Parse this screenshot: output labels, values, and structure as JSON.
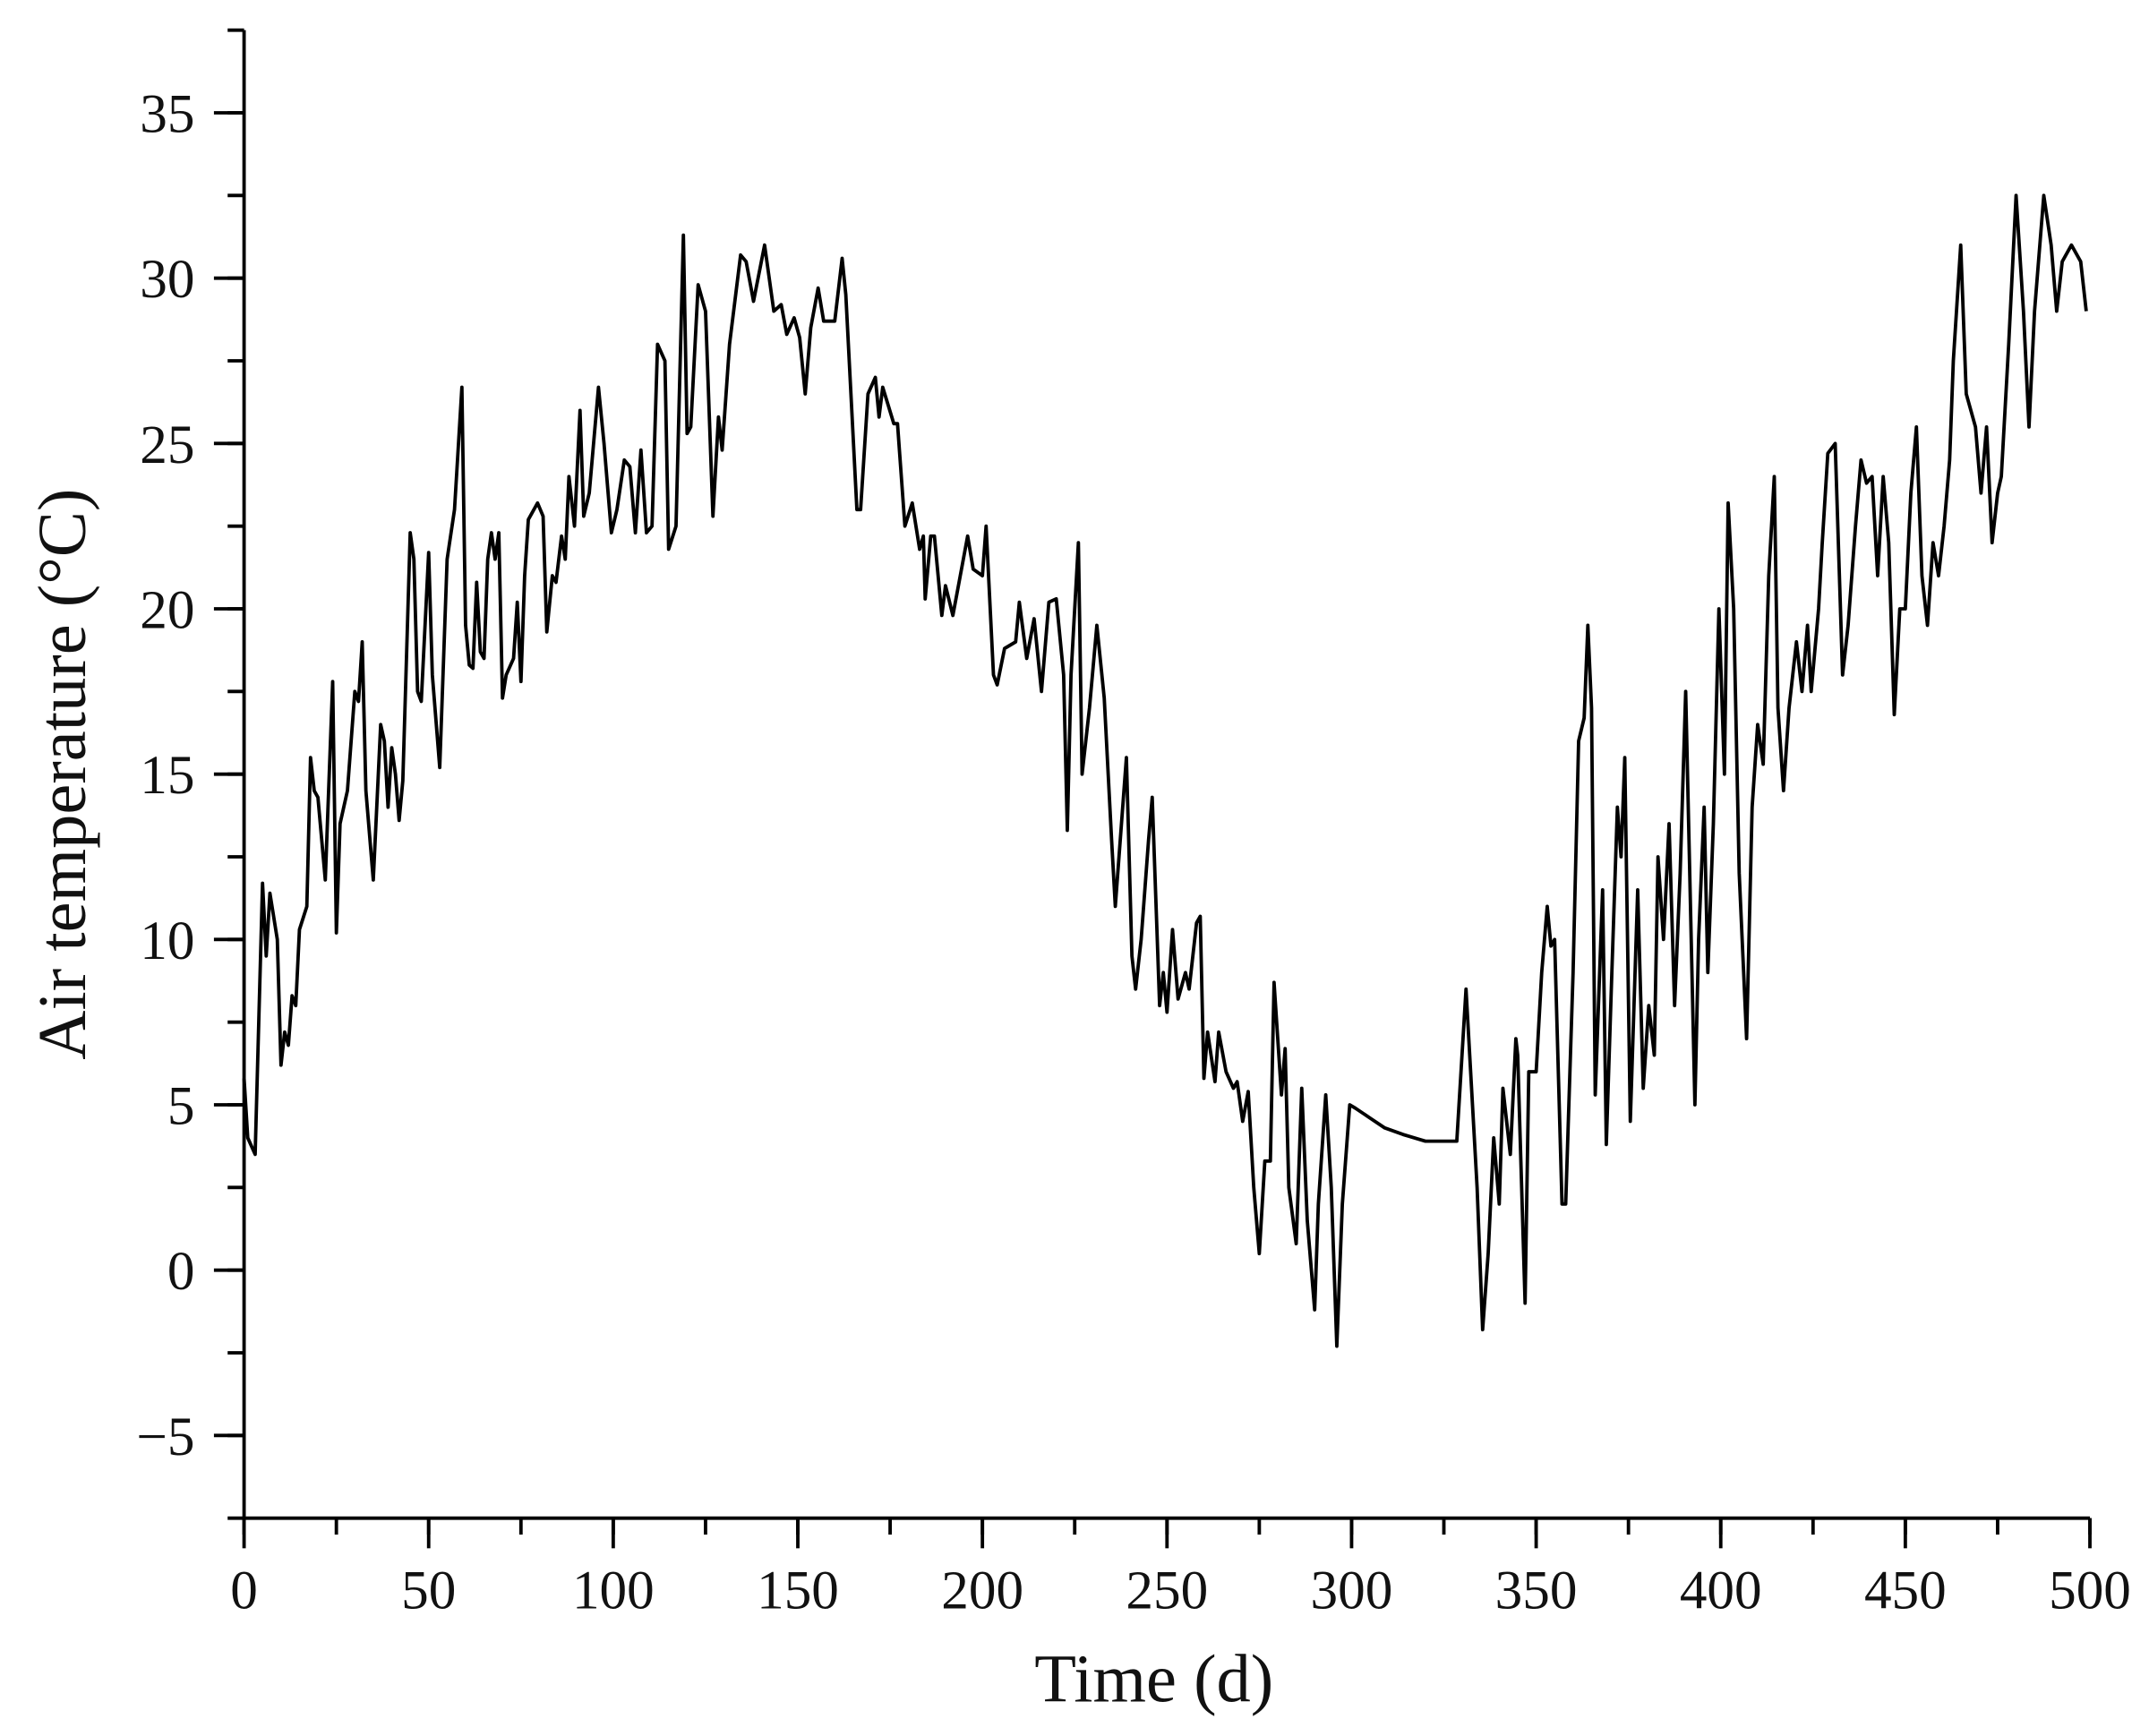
{
  "chart_data": {
    "type": "line",
    "xlabel": "Time (d)",
    "ylabel": "Air temperature (°C)",
    "xlim": [
      0,
      500
    ],
    "ylim": [
      -7.5,
      37.5
    ],
    "xticks": [
      0,
      50,
      100,
      150,
      200,
      250,
      300,
      350,
      400,
      450,
      500
    ],
    "yticks": [
      {
        "value": -5,
        "label": "−5"
      },
      0,
      5,
      10,
      15,
      20,
      25,
      30,
      35
    ],
    "series": [
      {
        "color": "#000000",
        "x": [
          0,
          1,
          3,
          5,
          6,
          7,
          9,
          10,
          11,
          12,
          13,
          14,
          15,
          17,
          18,
          19,
          20,
          22,
          24,
          25,
          26,
          28,
          30,
          31,
          32,
          33,
          35,
          37,
          38,
          39,
          40,
          41,
          42,
          43,
          45,
          46,
          47,
          48,
          50,
          51,
          53,
          55,
          57,
          59,
          60,
          61,
          62,
          63,
          64,
          65,
          66,
          67,
          68,
          69,
          70,
          71,
          73,
          74,
          75,
          76,
          77,
          79.5,
          81,
          82,
          83.5,
          84.5,
          86,
          87,
          88,
          89.5,
          91,
          92,
          93.5,
          96,
          97.5,
          99.5,
          101,
          103,
          104.5,
          106,
          107.5,
          109,
          110.5,
          112,
          114,
          115,
          117,
          119,
          120,
          121,
          123,
          125,
          127,
          128.5,
          129.5,
          131.5,
          134.5,
          136,
          138,
          141,
          143.5,
          145.5,
          147,
          149,
          150.5,
          152,
          153.5,
          155.5,
          157,
          160,
          162,
          163,
          166,
          167,
          169,
          171,
          172,
          173,
          176,
          177,
          179,
          181,
          183,
          184,
          184.5,
          186,
          187,
          189,
          190,
          192,
          194,
          196,
          197.5,
          200,
          201,
          203,
          204,
          206,
          209,
          210,
          212,
          214,
          216,
          218,
          220,
          222,
          223,
          224,
          226,
          227,
          229,
          231,
          233,
          235,
          236,
          238,
          239,
          240.5,
          241.5,
          243,
          245,
          246,
          248,
          249,
          250,
          251.5,
          253,
          255,
          256,
          258,
          259,
          260,
          261,
          263,
          264,
          266,
          268,
          269,
          270.5,
          272,
          273.5,
          275,
          276.5,
          278,
          279,
          281,
          282,
          283,
          285,
          286.5,
          288,
          290,
          291,
          293,
          294.5,
          296,
          297.5,
          299.5,
          301,
          305,
          309,
          314,
          320,
          328.5,
          331,
          334,
          335.5,
          337,
          338.5,
          340,
          341,
          343,
          344.5,
          345,
          347,
          348,
          350,
          351.5,
          353,
          354,
          355,
          357,
          358,
          360,
          361.5,
          363,
          364,
          365,
          366,
          368,
          369,
          370.5,
          372,
          373,
          374,
          375.5,
          377.5,
          379,
          380.5,
          382,
          383,
          384.5,
          386,
          387.5,
          389,
          390.5,
          393,
          394,
          395.5,
          396.5,
          398,
          399.5,
          401,
          402,
          403.5,
          405,
          407,
          408.5,
          410,
          411.5,
          413,
          414.5,
          415.5,
          417,
          418.5,
          420.5,
          422,
          423.5,
          424.5,
          426.5,
          427.5,
          429,
          431,
          433,
          434.5,
          436.5,
          438,
          439.5,
          441,
          442.5,
          444,
          445.5,
          447,
          448.5,
          450,
          451.5,
          453,
          454.5,
          456,
          457.5,
          459,
          460.5,
          462,
          463,
          465,
          466.5,
          469,
          470.5,
          472,
          473.5,
          475,
          476,
          478,
          480,
          482,
          483.5,
          485,
          487.5,
          489.5,
          491,
          492.5,
          495,
          497.5,
          499
        ],
        "values": [
          5.8,
          4,
          3.5,
          11.7,
          9.5,
          11.4,
          10,
          6.2,
          7.2,
          6.8,
          8.3,
          8,
          10.3,
          11,
          15.5,
          14.5,
          14.3,
          11.8,
          17.8,
          10.2,
          13.5,
          14.5,
          17.5,
          17.2,
          19,
          14.5,
          11.8,
          16.5,
          16,
          14,
          15.8,
          15,
          13.6,
          14.8,
          22.3,
          21.5,
          17.5,
          17.2,
          21.7,
          18,
          15.2,
          21.5,
          23,
          26.7,
          19.5,
          18.3,
          18.2,
          20.8,
          18.7,
          18.5,
          21.5,
          22.3,
          21.5,
          22.3,
          17.3,
          18,
          18.5,
          20.2,
          17.8,
          21,
          22.7,
          23.2,
          22.8,
          19.3,
          21,
          20.8,
          22.2,
          21.5,
          24,
          22.5,
          26,
          22.8,
          23.5,
          26.7,
          25,
          22.3,
          23,
          24.5,
          24.3,
          22.3,
          24.8,
          22.3,
          22.5,
          28,
          27.5,
          21.8,
          22.5,
          31.3,
          25.3,
          25.5,
          29.8,
          29,
          22.8,
          25.8,
          24.8,
          28,
          30.7,
          30.5,
          29.3,
          31,
          29,
          29.2,
          28.3,
          28.8,
          28.2,
          26.5,
          28.5,
          29.7,
          28.7,
          28.7,
          30.6,
          29.5,
          23,
          23,
          26.5,
          27,
          25.8,
          26.7,
          25.6,
          25.6,
          22.5,
          23.2,
          21.8,
          22.2,
          20.3,
          22.2,
          22.2,
          19.8,
          20.7,
          19.8,
          21,
          22.2,
          21.2,
          21,
          22.5,
          18,
          17.7,
          18.8,
          19,
          20.2,
          18.5,
          19.7,
          17.5,
          20.2,
          20.3,
          18,
          13.3,
          18,
          22,
          15,
          17,
          19.5,
          17.3,
          13,
          11,
          14,
          15.5,
          9.5,
          8.5,
          10,
          13,
          14.3,
          8,
          9,
          7.8,
          10.3,
          8.2,
          9,
          8.5,
          10.5,
          10.7,
          5.8,
          7.2,
          5.7,
          7.2,
          6,
          5.5,
          5.7,
          4.5,
          5.4,
          2.5,
          0.5,
          3.3,
          3.3,
          8.7,
          5.3,
          6.7,
          2.5,
          0.8,
          5.5,
          1.5,
          -1.2,
          2,
          5.3,
          2.5,
          -2.3,
          2,
          5,
          4.9,
          4.6,
          4.3,
          4.1,
          3.9,
          3.9,
          8.5,
          2.5,
          -1.8,
          0.5,
          4,
          2,
          5.5,
          3.5,
          7,
          6.5,
          -1,
          6,
          6,
          9,
          11,
          9.8,
          10,
          2,
          2,
          9,
          16,
          16.7,
          19.5,
          17,
          5.3,
          11.5,
          3.8,
          9,
          14,
          12.5,
          15.5,
          4.5,
          11.5,
          5.5,
          8,
          6.5,
          12.5,
          10,
          13.5,
          8,
          12,
          17.5,
          5,
          10,
          14,
          9,
          13.5,
          20,
          15,
          23.2,
          20,
          12,
          7,
          14,
          16.5,
          15.3,
          21,
          24,
          17,
          14.5,
          17,
          19,
          17.5,
          19.5,
          17.5,
          20,
          22,
          24.7,
          25,
          18,
          19.5,
          22.5,
          24.5,
          23.8,
          24,
          21,
          24,
          22,
          16.8,
          20,
          20,
          23.5,
          25.5,
          21,
          19.5,
          22,
          21,
          22.5,
          24.5,
          27.5,
          31,
          26.5,
          25.5,
          23.5,
          25.5,
          22,
          23.5,
          24,
          28,
          32.5,
          29,
          25.5,
          29,
          32.5,
          31,
          29,
          30.5,
          31,
          30.5,
          29
        ]
      }
    ]
  }
}
